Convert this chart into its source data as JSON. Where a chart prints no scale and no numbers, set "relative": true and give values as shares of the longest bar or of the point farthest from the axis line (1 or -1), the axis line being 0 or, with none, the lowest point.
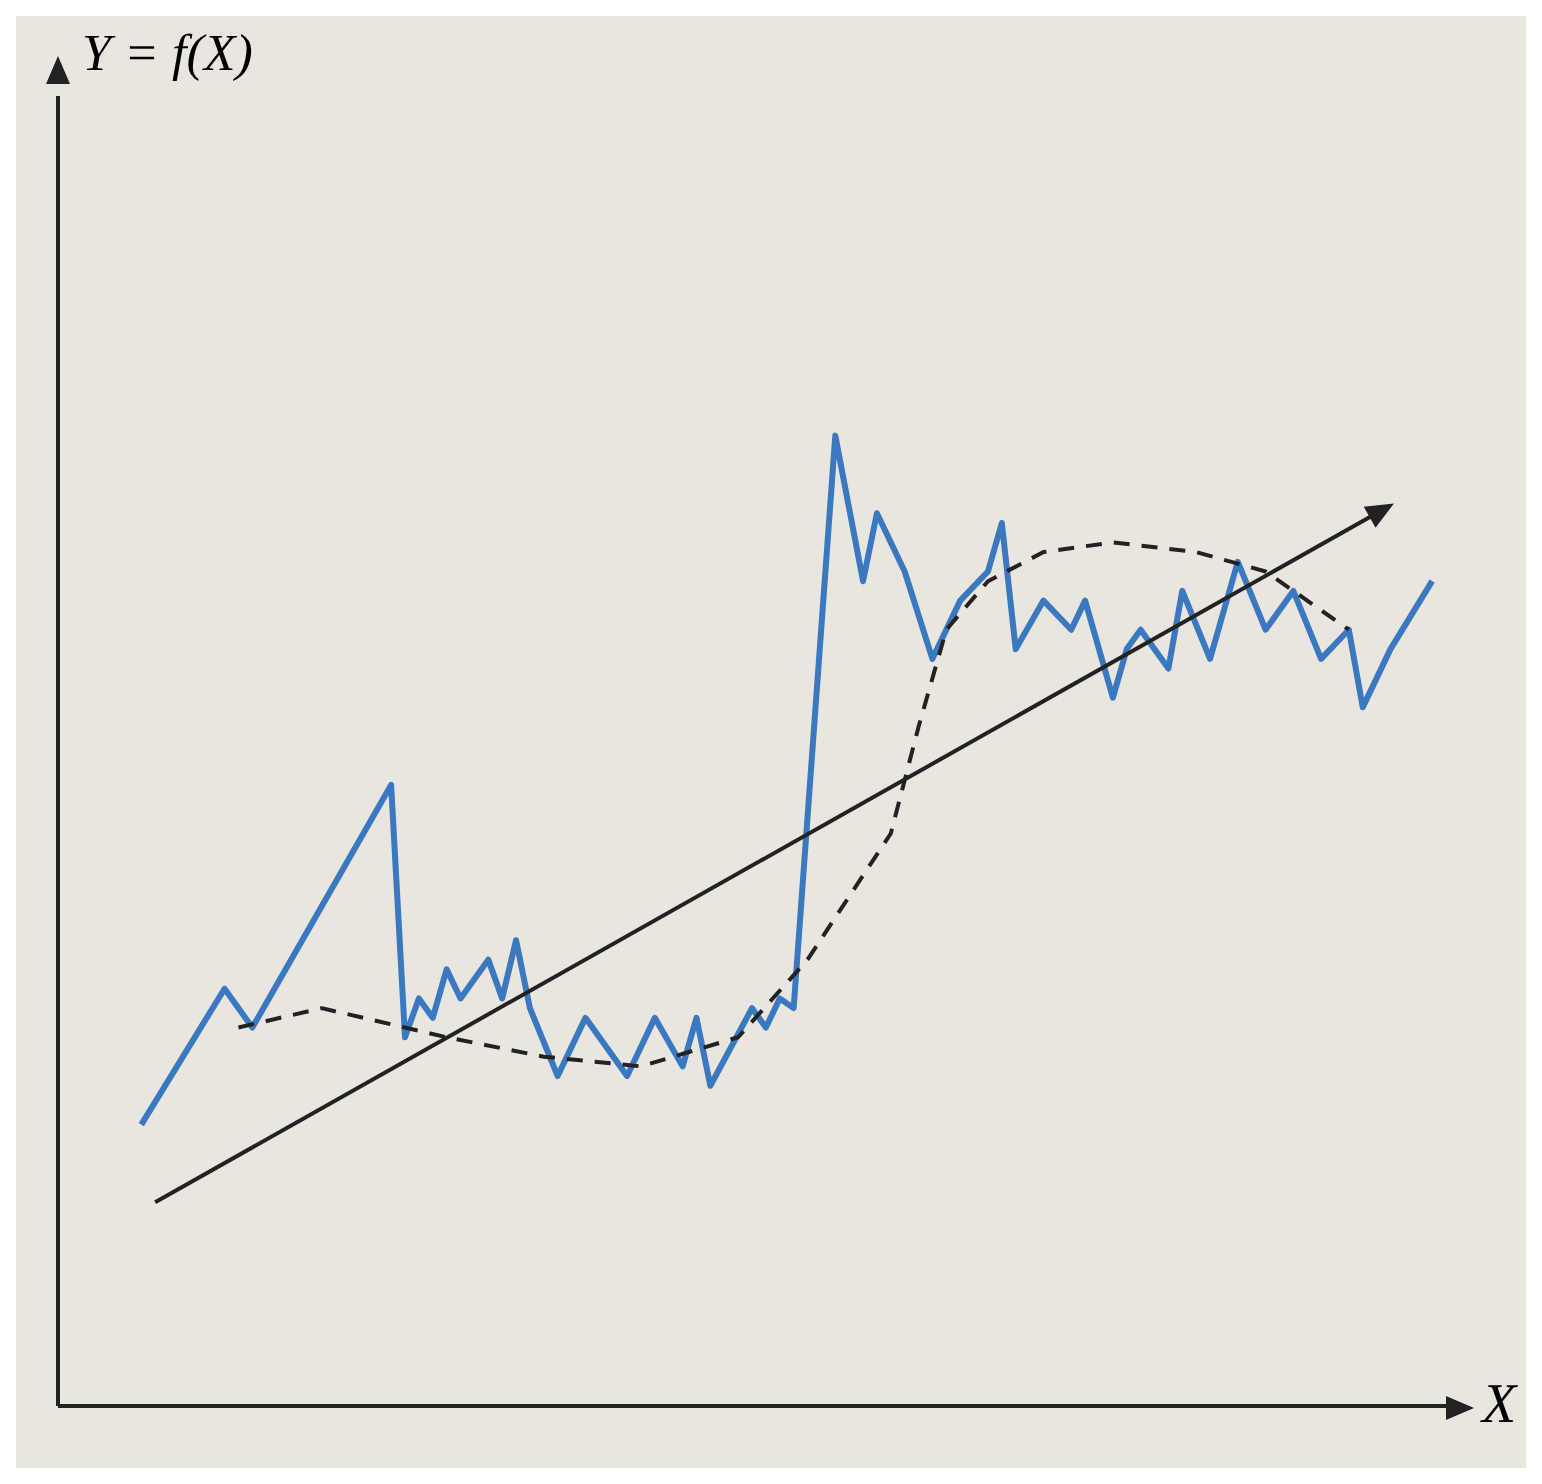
{
  "chart_data": {
    "type": "line",
    "relative": true,
    "xlabel": "X",
    "annotations": [
      "Y = f(X)"
    ],
    "tick_labels": false,
    "categories": [
      null,
      null,
      null,
      null,
      null,
      null,
      null,
      null,
      null,
      null,
      null,
      null,
      null,
      null,
      null,
      null,
      null,
      null,
      null,
      null,
      null,
      null,
      null,
      null,
      null,
      null,
      null,
      null,
      null,
      null,
      null,
      null,
      null,
      null,
      null,
      null,
      null,
      null,
      null,
      null,
      null,
      null,
      null,
      null,
      null,
      null,
      null,
      null,
      null,
      null,
      null,
      null,
      null,
      null,
      null,
      null,
      null,
      null,
      null,
      null,
      null,
      null,
      null,
      null,
      null,
      null,
      null,
      null,
      null,
      null,
      null,
      null,
      null,
      null,
      null,
      null,
      null,
      null,
      null,
      null,
      null,
      null,
      null,
      null,
      null,
      null,
      null,
      null,
      null,
      null,
      null,
      null,
      null,
      null,
      null,
      null,
      null,
      null,
      null,
      null,
      null
    ],
    "series": [
      {
        "color": "#3a78c0",
        "line_style": "solid",
        "values": [
          null,
          null,
          null,
          null,
          null,
          null,
          0.29,
          null,
          null,
          null,
          null,
          null,
          0.43,
          null,
          0.39,
          null,
          null,
          null,
          null,
          null,
          null,
          null,
          null,
          null,
          0.64,
          0.38,
          0.42,
          0.4,
          0.45,
          0.42,
          null,
          0.46,
          0.42,
          0.48,
          0.41,
          null,
          0.34,
          null,
          0.4,
          null,
          null,
          0.34,
          null,
          0.4,
          null,
          0.35,
          0.4,
          0.33,
          null,
          null,
          0.41,
          0.39,
          0.42,
          0.41,
          null,
          null,
          1.0,
          null,
          0.85,
          0.92,
          null,
          0.86,
          null,
          0.77,
          null,
          0.83,
          null,
          0.86,
          0.91,
          0.78,
          null,
          0.83,
          null,
          0.8,
          0.83,
          null,
          0.73,
          0.78,
          0.8,
          null,
          0.76,
          0.84,
          null,
          0.77,
          null,
          0.87,
          null,
          0.8,
          null,
          0.84,
          null,
          0.77,
          null,
          0.8,
          0.72,
          null,
          0.78,
          null,
          null,
          0.85,
          null
        ]
      },
      {
        "color": "#222222",
        "line_style": "dashed",
        "values": [
          null,
          null,
          null,
          null,
          null,
          null,
          null,
          null,
          null,
          null,
          null,
          null,
          null,
          0.39,
          null,
          null,
          null,
          null,
          null,
          0.41,
          null,
          null,
          null,
          null,
          null,
          null,
          null,
          null,
          0.38,
          null,
          null,
          null,
          null,
          null,
          null,
          0.36,
          null,
          null,
          null,
          null,
          null,
          null,
          0.35,
          null,
          null,
          null,
          null,
          null,
          null,
          0.38,
          null,
          null,
          null,
          null,
          0.46,
          null,
          null,
          null,
          null,
          null,
          0.59,
          null,
          0.7,
          null,
          0.8,
          null,
          null,
          0.85,
          null,
          null,
          null,
          0.88,
          null,
          null,
          null,
          null,
          0.89,
          null,
          null,
          null,
          null,
          null,
          0.88,
          null,
          null,
          null,
          null,
          0.86,
          null,
          null,
          null,
          null,
          null,
          0.8,
          null,
          null,
          null,
          null,
          null,
          null,
          null
        ]
      },
      {
        "color": "#222222",
        "line_style": "solid",
        "values": [
          null,
          null,
          null,
          null,
          null,
          null,
          null,
          0.21,
          null,
          null,
          null,
          null,
          null,
          null,
          null,
          null,
          null,
          null,
          null,
          null,
          null,
          null,
          null,
          null,
          null,
          null,
          null,
          null,
          null,
          null,
          null,
          null,
          null,
          null,
          null,
          null,
          null,
          null,
          null,
          null,
          null,
          null,
          null,
          null,
          null,
          null,
          null,
          null,
          null,
          null,
          null,
          null,
          null,
          null,
          null,
          null,
          null,
          null,
          null,
          null,
          null,
          null,
          null,
          null,
          null,
          null,
          null,
          null,
          null,
          null,
          null,
          null,
          null,
          null,
          null,
          null,
          null,
          null,
          null,
          null,
          null,
          null,
          null,
          null,
          null,
          null,
          null,
          null,
          null,
          null,
          null,
          null,
          null,
          null,
          null,
          0.92,
          null,
          null,
          null,
          null,
          null
        ]
      }
    ]
  }
}
